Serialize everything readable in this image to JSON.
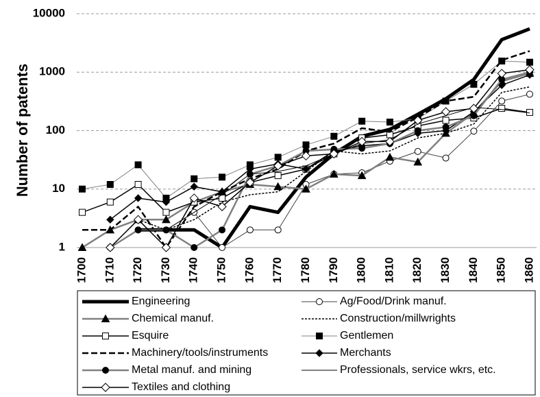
{
  "chart_data": {
    "type": "line",
    "yscale": "log",
    "grid": true,
    "y_label": "Number of patents",
    "categories": [
      "1700",
      "1710",
      "1720",
      "1730",
      "1740",
      "1750",
      "1760",
      "1770",
      "1780",
      "1790",
      "1800",
      "1810",
      "1820",
      "1830",
      "1840",
      "1850",
      "1860"
    ],
    "ylim": [
      1,
      10000
    ],
    "yticks": [
      1,
      10,
      100,
      1000,
      10000
    ],
    "series": [
      {
        "name": "Engineering",
        "color": "#000000",
        "values": [
          null,
          null,
          2,
          2,
          2,
          1,
          5,
          4,
          16,
          40,
          80,
          105,
          190,
          350,
          750,
          3600,
          5500
        ]
      },
      {
        "name": "Ag/Food/Drink manuf.",
        "color": "#404040",
        "values": [
          null,
          1,
          2,
          2,
          4,
          1,
          2,
          2,
          12,
          18,
          19,
          30,
          44,
          34,
          98,
          320,
          420
        ]
      },
      {
        "name": "Chemical manuf.",
        "color": "#808080",
        "values": [
          1,
          2,
          3,
          3,
          6,
          9,
          12,
          11,
          10,
          18,
          17,
          35,
          29,
          90,
          200,
          700,
          950
        ]
      },
      {
        "name": "Construction/millwrights",
        "color": "#000000",
        "values": [
          null,
          null,
          3,
          2,
          3,
          6,
          8,
          9,
          20,
          45,
          40,
          45,
          75,
          90,
          130,
          450,
          560
        ]
      },
      {
        "name": "Esquire",
        "color": "#000000",
        "values": [
          4,
          6,
          12,
          4,
          6,
          7,
          13,
          17,
          22,
          40,
          75,
          85,
          120,
          150,
          165,
          240,
          205
        ]
      },
      {
        "name": "Gentlemen",
        "color": "#808080",
        "values": [
          10,
          12,
          26,
          7,
          15,
          16,
          26,
          35,
          57,
          80,
          145,
          140,
          160,
          320,
          620,
          1550,
          1480
        ]
      },
      {
        "name": "Machinery/tools/instruments",
        "color": "#000000",
        "values": [
          2,
          2,
          5,
          1,
          5,
          9,
          15,
          22,
          45,
          60,
          110,
          95,
          170,
          320,
          380,
          1600,
          2300
        ]
      },
      {
        "name": "Merchants",
        "color": "#000000",
        "values": [
          null,
          3,
          7,
          6,
          11,
          9,
          22,
          27,
          22,
          45,
          55,
          60,
          90,
          100,
          210,
          600,
          900
        ]
      },
      {
        "name": "Metal manuf. and mining",
        "color": "#808080",
        "values": [
          null,
          1,
          2,
          2,
          1,
          2,
          18,
          25,
          45,
          48,
          50,
          60,
          100,
          115,
          180,
          750,
          1000
        ]
      },
      {
        "name": "Professionals,  service wkrs, etc.",
        "color": "#000000",
        "values": [
          null,
          null,
          2,
          2,
          4,
          8,
          18,
          20,
          25,
          40,
          60,
          70,
          130,
          180,
          250,
          230,
          200
        ]
      },
      {
        "name": "Textiles and clothing",
        "color": "#000000",
        "values": [
          null,
          1,
          3,
          1,
          7,
          5,
          13,
          25,
          37,
          40,
          65,
          65,
          150,
          210,
          240,
          950,
          1100
        ]
      }
    ]
  }
}
